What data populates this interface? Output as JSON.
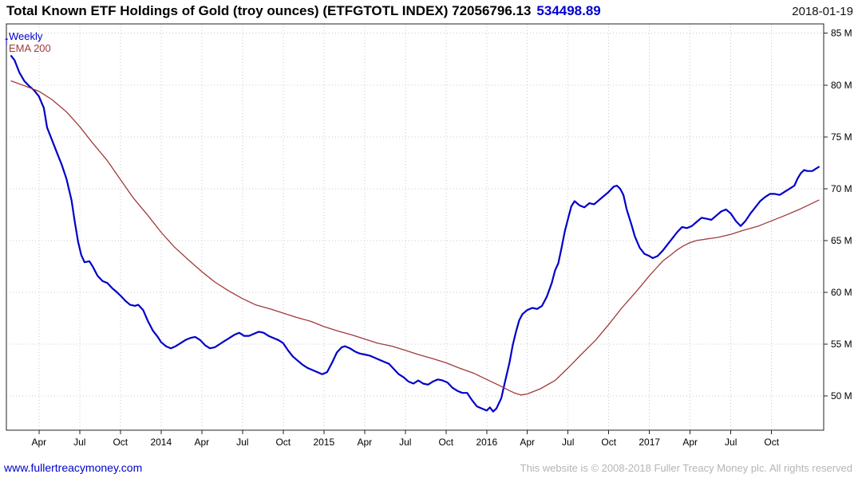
{
  "header": {
    "title": "Total Known ETF Holdings of Gold (troy ounces) (ETFGTOTL INDEX) 72056796.13",
    "secondary_value": "534498.89",
    "date": "2018-01-19"
  },
  "legend": {
    "weekly": "Weekly",
    "ema": "EMA 200",
    "arrow": "↑"
  },
  "footer": {
    "link": "www.fullertreacymoney.com",
    "copyright": "This website is © 2008-2018 Fuller Treacy Money plc. All rights reserved"
  },
  "colors": {
    "weekly_line": "#0000c8",
    "ema_line": "#a03a3a",
    "secondary_value_text": "#0000cc",
    "grid": "#c8c8c8",
    "plot_border": "#222222",
    "link": "#0000cc",
    "copyright_text": "#b5b5b5"
  },
  "chart_data": {
    "type": "line",
    "title": "Total Known ETF Holdings of Gold (troy ounces) (ETFGTOTL INDEX)",
    "last_value_label": "72056796.13",
    "y_unit": "millions of troy ounces",
    "grid": true,
    "legend_position": "top-left",
    "xlim": [
      2013.05,
      2018.07
    ],
    "ylim": [
      46.7,
      85.9
    ],
    "x_ticks": [
      {
        "v": 2013.25,
        "label": "Apr"
      },
      {
        "v": 2013.5,
        "label": "Jul"
      },
      {
        "v": 2013.75,
        "label": "Oct"
      },
      {
        "v": 2014.0,
        "label": "2014"
      },
      {
        "v": 2014.25,
        "label": "Apr"
      },
      {
        "v": 2014.5,
        "label": "Jul"
      },
      {
        "v": 2014.75,
        "label": "Oct"
      },
      {
        "v": 2015.0,
        "label": "2015"
      },
      {
        "v": 2015.25,
        "label": "Apr"
      },
      {
        "v": 2015.5,
        "label": "Jul"
      },
      {
        "v": 2015.75,
        "label": "Oct"
      },
      {
        "v": 2016.0,
        "label": "2016"
      },
      {
        "v": 2016.25,
        "label": "Apr"
      },
      {
        "v": 2016.5,
        "label": "Jul"
      },
      {
        "v": 2016.75,
        "label": "Oct"
      },
      {
        "v": 2017.0,
        "label": "2017"
      },
      {
        "v": 2017.25,
        "label": "Apr"
      },
      {
        "v": 2017.5,
        "label": "Jul"
      },
      {
        "v": 2017.75,
        "label": "Oct"
      }
    ],
    "y_ticks": [
      {
        "v": 50,
        "label": "50 M"
      },
      {
        "v": 55,
        "label": "55 M"
      },
      {
        "v": 60,
        "label": "60 M"
      },
      {
        "v": 65,
        "label": "65 M"
      },
      {
        "v": 70,
        "label": "70 M"
      },
      {
        "v": 75,
        "label": "75 M"
      },
      {
        "v": 80,
        "label": "80 M"
      },
      {
        "v": 85,
        "label": "85 M"
      }
    ],
    "series": [
      {
        "name": "Weekly",
        "color": "#0000c8",
        "width": 2.2,
        "points": [
          [
            2013.08,
            82.8
          ],
          [
            2013.1,
            82.4
          ],
          [
            2013.13,
            81.2
          ],
          [
            2013.16,
            80.4
          ],
          [
            2013.19,
            79.9
          ],
          [
            2013.22,
            79.5
          ],
          [
            2013.25,
            78.9
          ],
          [
            2013.28,
            77.8
          ],
          [
            2013.3,
            75.9
          ],
          [
            2013.33,
            74.7
          ],
          [
            2013.36,
            73.5
          ],
          [
            2013.39,
            72.3
          ],
          [
            2013.42,
            70.9
          ],
          [
            2013.45,
            68.9
          ],
          [
            2013.47,
            66.8
          ],
          [
            2013.49,
            64.9
          ],
          [
            2013.51,
            63.6
          ],
          [
            2013.53,
            62.9
          ],
          [
            2013.56,
            63.0
          ],
          [
            2013.58,
            62.5
          ],
          [
            2013.61,
            61.6
          ],
          [
            2013.64,
            61.1
          ],
          [
            2013.67,
            60.9
          ],
          [
            2013.7,
            60.4
          ],
          [
            2013.73,
            60.0
          ],
          [
            2013.75,
            59.7
          ],
          [
            2013.78,
            59.2
          ],
          [
            2013.81,
            58.8
          ],
          [
            2013.84,
            58.7
          ],
          [
            2013.86,
            58.8
          ],
          [
            2013.89,
            58.3
          ],
          [
            2013.92,
            57.2
          ],
          [
            2013.95,
            56.3
          ],
          [
            2013.98,
            55.7
          ],
          [
            2014.0,
            55.2
          ],
          [
            2014.03,
            54.8
          ],
          [
            2014.06,
            54.6
          ],
          [
            2014.09,
            54.8
          ],
          [
            2014.12,
            55.1
          ],
          [
            2014.15,
            55.4
          ],
          [
            2014.18,
            55.6
          ],
          [
            2014.21,
            55.7
          ],
          [
            2014.24,
            55.4
          ],
          [
            2014.27,
            54.9
          ],
          [
            2014.3,
            54.6
          ],
          [
            2014.33,
            54.7
          ],
          [
            2014.36,
            55.0
          ],
          [
            2014.39,
            55.3
          ],
          [
            2014.42,
            55.6
          ],
          [
            2014.45,
            55.9
          ],
          [
            2014.48,
            56.1
          ],
          [
            2014.51,
            55.8
          ],
          [
            2014.54,
            55.8
          ],
          [
            2014.57,
            56.0
          ],
          [
            2014.6,
            56.2
          ],
          [
            2014.63,
            56.1
          ],
          [
            2014.66,
            55.8
          ],
          [
            2014.69,
            55.6
          ],
          [
            2014.72,
            55.4
          ],
          [
            2014.75,
            55.1
          ],
          [
            2014.78,
            54.4
          ],
          [
            2014.81,
            53.8
          ],
          [
            2014.84,
            53.4
          ],
          [
            2014.87,
            53.0
          ],
          [
            2014.9,
            52.7
          ],
          [
            2014.93,
            52.5
          ],
          [
            2014.96,
            52.3
          ],
          [
            2014.99,
            52.1
          ],
          [
            2015.02,
            52.3
          ],
          [
            2015.05,
            53.2
          ],
          [
            2015.08,
            54.2
          ],
          [
            2015.11,
            54.7
          ],
          [
            2015.13,
            54.8
          ],
          [
            2015.16,
            54.6
          ],
          [
            2015.19,
            54.3
          ],
          [
            2015.22,
            54.1
          ],
          [
            2015.25,
            54.0
          ],
          [
            2015.28,
            53.9
          ],
          [
            2015.31,
            53.7
          ],
          [
            2015.34,
            53.5
          ],
          [
            2015.37,
            53.3
          ],
          [
            2015.4,
            53.1
          ],
          [
            2015.43,
            52.6
          ],
          [
            2015.46,
            52.1
          ],
          [
            2015.49,
            51.8
          ],
          [
            2015.52,
            51.4
          ],
          [
            2015.55,
            51.2
          ],
          [
            2015.58,
            51.5
          ],
          [
            2015.61,
            51.2
          ],
          [
            2015.64,
            51.1
          ],
          [
            2015.67,
            51.4
          ],
          [
            2015.7,
            51.6
          ],
          [
            2015.73,
            51.5
          ],
          [
            2015.76,
            51.3
          ],
          [
            2015.79,
            50.8
          ],
          [
            2015.82,
            50.5
          ],
          [
            2015.85,
            50.3
          ],
          [
            2015.88,
            50.3
          ],
          [
            2015.91,
            49.6
          ],
          [
            2015.94,
            49.0
          ],
          [
            2015.97,
            48.8
          ],
          [
            2016.0,
            48.6
          ],
          [
            2016.02,
            48.9
          ],
          [
            2016.04,
            48.5
          ],
          [
            2016.06,
            48.8
          ],
          [
            2016.09,
            49.8
          ],
          [
            2016.11,
            51.2
          ],
          [
            2016.14,
            53.2
          ],
          [
            2016.16,
            54.9
          ],
          [
            2016.18,
            56.2
          ],
          [
            2016.2,
            57.3
          ],
          [
            2016.22,
            57.9
          ],
          [
            2016.25,
            58.3
          ],
          [
            2016.28,
            58.5
          ],
          [
            2016.31,
            58.4
          ],
          [
            2016.34,
            58.7
          ],
          [
            2016.37,
            59.6
          ],
          [
            2016.4,
            60.9
          ],
          [
            2016.42,
            62.1
          ],
          [
            2016.44,
            62.8
          ],
          [
            2016.46,
            64.3
          ],
          [
            2016.48,
            65.9
          ],
          [
            2016.5,
            67.1
          ],
          [
            2016.52,
            68.3
          ],
          [
            2016.54,
            68.8
          ],
          [
            2016.57,
            68.4
          ],
          [
            2016.6,
            68.2
          ],
          [
            2016.63,
            68.6
          ],
          [
            2016.66,
            68.5
          ],
          [
            2016.69,
            68.9
          ],
          [
            2016.72,
            69.3
          ],
          [
            2016.75,
            69.7
          ],
          [
            2016.78,
            70.2
          ],
          [
            2016.8,
            70.3
          ],
          [
            2016.82,
            70.0
          ],
          [
            2016.84,
            69.4
          ],
          [
            2016.86,
            68.0
          ],
          [
            2016.89,
            66.5
          ],
          [
            2016.91,
            65.4
          ],
          [
            2016.94,
            64.3
          ],
          [
            2016.97,
            63.7
          ],
          [
            2017.0,
            63.5
          ],
          [
            2017.02,
            63.3
          ],
          [
            2017.05,
            63.5
          ],
          [
            2017.08,
            64.0
          ],
          [
            2017.11,
            64.6
          ],
          [
            2017.14,
            65.2
          ],
          [
            2017.17,
            65.8
          ],
          [
            2017.2,
            66.3
          ],
          [
            2017.23,
            66.2
          ],
          [
            2017.26,
            66.4
          ],
          [
            2017.29,
            66.8
          ],
          [
            2017.32,
            67.2
          ],
          [
            2017.35,
            67.1
          ],
          [
            2017.38,
            67.0
          ],
          [
            2017.41,
            67.4
          ],
          [
            2017.44,
            67.8
          ],
          [
            2017.47,
            68.0
          ],
          [
            2017.5,
            67.6
          ],
          [
            2017.53,
            66.9
          ],
          [
            2017.56,
            66.4
          ],
          [
            2017.59,
            66.9
          ],
          [
            2017.62,
            67.6
          ],
          [
            2017.65,
            68.2
          ],
          [
            2017.68,
            68.8
          ],
          [
            2017.71,
            69.2
          ],
          [
            2017.74,
            69.5
          ],
          [
            2017.77,
            69.5
          ],
          [
            2017.8,
            69.4
          ],
          [
            2017.83,
            69.7
          ],
          [
            2017.86,
            70.0
          ],
          [
            2017.89,
            70.3
          ],
          [
            2017.91,
            71.0
          ],
          [
            2017.93,
            71.5
          ],
          [
            2017.95,
            71.8
          ],
          [
            2017.97,
            71.7
          ],
          [
            2018.0,
            71.7
          ],
          [
            2018.02,
            71.9
          ],
          [
            2018.04,
            72.1
          ]
        ]
      },
      {
        "name": "EMA 200",
        "color": "#a03a3a",
        "width": 1.3,
        "points": [
          [
            2013.08,
            80.4
          ],
          [
            2013.15,
            80.0
          ],
          [
            2013.25,
            79.4
          ],
          [
            2013.33,
            78.6
          ],
          [
            2013.42,
            77.4
          ],
          [
            2013.5,
            76.0
          ],
          [
            2013.58,
            74.4
          ],
          [
            2013.67,
            72.7
          ],
          [
            2013.75,
            70.9
          ],
          [
            2013.83,
            69.1
          ],
          [
            2013.92,
            67.4
          ],
          [
            2014.0,
            65.8
          ],
          [
            2014.08,
            64.4
          ],
          [
            2014.17,
            63.1
          ],
          [
            2014.25,
            62.0
          ],
          [
            2014.33,
            61.0
          ],
          [
            2014.42,
            60.1
          ],
          [
            2014.5,
            59.4
          ],
          [
            2014.58,
            58.8
          ],
          [
            2014.67,
            58.4
          ],
          [
            2014.75,
            58.0
          ],
          [
            2014.83,
            57.6
          ],
          [
            2014.92,
            57.2
          ],
          [
            2015.0,
            56.7
          ],
          [
            2015.08,
            56.3
          ],
          [
            2015.17,
            55.9
          ],
          [
            2015.25,
            55.5
          ],
          [
            2015.33,
            55.1
          ],
          [
            2015.42,
            54.8
          ],
          [
            2015.5,
            54.4
          ],
          [
            2015.58,
            54.0
          ],
          [
            2015.67,
            53.6
          ],
          [
            2015.75,
            53.2
          ],
          [
            2015.83,
            52.7
          ],
          [
            2015.92,
            52.2
          ],
          [
            2016.0,
            51.6
          ],
          [
            2016.08,
            51.0
          ],
          [
            2016.13,
            50.6
          ],
          [
            2016.17,
            50.3
          ],
          [
            2016.21,
            50.1
          ],
          [
            2016.25,
            50.2
          ],
          [
            2016.33,
            50.7
          ],
          [
            2016.42,
            51.5
          ],
          [
            2016.5,
            52.7
          ],
          [
            2016.58,
            54.0
          ],
          [
            2016.67,
            55.4
          ],
          [
            2016.75,
            56.9
          ],
          [
            2016.83,
            58.5
          ],
          [
            2016.92,
            60.1
          ],
          [
            2017.0,
            61.6
          ],
          [
            2017.04,
            62.3
          ],
          [
            2017.08,
            63.0
          ],
          [
            2017.13,
            63.6
          ],
          [
            2017.17,
            64.1
          ],
          [
            2017.21,
            64.5
          ],
          [
            2017.25,
            64.8
          ],
          [
            2017.29,
            65.0
          ],
          [
            2017.33,
            65.1
          ],
          [
            2017.42,
            65.3
          ],
          [
            2017.5,
            65.6
          ],
          [
            2017.58,
            66.0
          ],
          [
            2017.67,
            66.4
          ],
          [
            2017.75,
            66.9
          ],
          [
            2017.83,
            67.4
          ],
          [
            2017.92,
            68.0
          ],
          [
            2018.0,
            68.6
          ],
          [
            2018.04,
            68.9
          ]
        ]
      }
    ]
  }
}
